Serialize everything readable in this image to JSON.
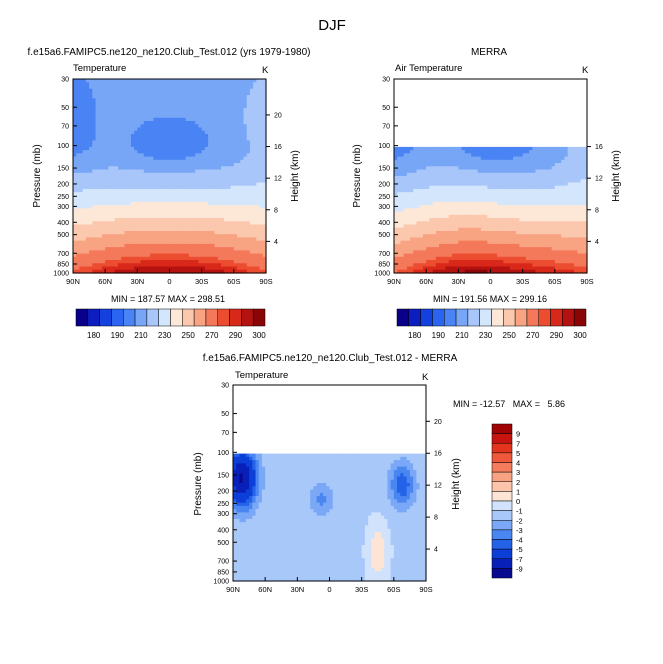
{
  "figure_title": "DJF",
  "chart_data": [
    {
      "type": "heatmap",
      "title": "f.e15a6.FAMIPC5.ne120_ne120.Club_Test.012 (yrs 1979-1980)",
      "left_label": "Temperature",
      "right_label": "K",
      "ylabel": "Pressure (mb)",
      "ylabel_right": "Height (km)",
      "x_ticks": [
        "90N",
        "60N",
        "30N",
        "0",
        "30S",
        "60S",
        "90S"
      ],
      "y_ticks": [
        "30",
        "50",
        "70",
        "100",
        "150",
        "200",
        "250",
        "300",
        "400",
        "500",
        "700",
        "850",
        "1000"
      ],
      "y_ticks_right": [
        "20",
        "16",
        "12",
        "8",
        "4"
      ],
      "ylim": [
        1000,
        30
      ],
      "stats": "MIN = 187.57   MAX = 298.51",
      "field": "model"
    },
    {
      "type": "heatmap",
      "title": "MERRA",
      "left_label": "Air Temperature",
      "right_label": "K",
      "ylabel": "Pressure (mb)",
      "ylabel_right": "Height (km)",
      "x_ticks": [
        "90N",
        "60N",
        "30N",
        "0",
        "30S",
        "60S",
        "90S"
      ],
      "y_ticks": [
        "30",
        "50",
        "70",
        "100",
        "150",
        "200",
        "250",
        "300",
        "400",
        "500",
        "700",
        "850",
        "1000"
      ],
      "y_ticks_right": [
        "16",
        "12",
        "8",
        "4"
      ],
      "ylim": [
        1000,
        30
      ],
      "data_top_pressure": 100,
      "stats": "MIN = 191.56   MAX = 299.16",
      "field": "obs"
    },
    {
      "type": "heatmap",
      "title": "f.e15a6.FAMIPC5.ne120_ne120.Club_Test.012 - MERRA",
      "left_label": "Temperature",
      "right_label": "K",
      "ylabel": "Pressure (mb)",
      "ylabel_right": "Height (km)",
      "x_ticks": [
        "90N",
        "60N",
        "30N",
        "0",
        "30S",
        "60S",
        "90S"
      ],
      "y_ticks": [
        "30",
        "50",
        "70",
        "100",
        "150",
        "200",
        "250",
        "300",
        "400",
        "500",
        "700",
        "850",
        "1000"
      ],
      "y_ticks_right": [
        "20",
        "16",
        "12",
        "8",
        "4"
      ],
      "ylim": [
        1000,
        30
      ],
      "data_top_pressure": 100,
      "stats": "MIN = -12.57   MAX =   5.86",
      "field": "diff"
    }
  ],
  "abs_colorbar": {
    "labels": [
      "180",
      "190",
      "210",
      "230",
      "250",
      "270",
      "290",
      "300"
    ],
    "colors": [
      "#08008a",
      "#0c1ec0",
      "#1440e0",
      "#2a64f0",
      "#4a84f4",
      "#78a6f6",
      "#a8c6fa",
      "#d4e6fc",
      "#fde8d8",
      "#fbc8ae",
      "#f8a482",
      "#f4785a",
      "#ec4c30",
      "#d8281a",
      "#b41210",
      "#8a0606"
    ]
  },
  "diff_colorbar": {
    "labels": [
      "9",
      "7",
      "5",
      "4",
      "3",
      "2",
      "1",
      "0",
      "-1",
      "-2",
      "-3",
      "-4",
      "-5",
      "-7",
      "-9"
    ],
    "colors": [
      "#a00404",
      "#c8140e",
      "#e4341e",
      "#f0583c",
      "#f47c5c",
      "#f8a284",
      "#fbc4ab",
      "#fde4d4",
      "#d0e2fc",
      "#a8c8fa",
      "#7aa8f6",
      "#4a86f2",
      "#2462e8",
      "#0c3ed8",
      "#0820b8",
      "#080a90"
    ]
  }
}
